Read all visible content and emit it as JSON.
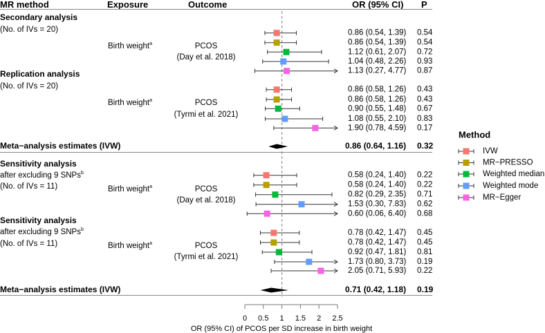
{
  "header": {
    "mr_method": "MR method",
    "exposure": "Exposure",
    "outcome": "Outcome",
    "or_ci": "OR (95% CI)",
    "p": "P"
  },
  "chart_data": {
    "type": "forest",
    "xlabel": "OR (95% CI) of PCOS per SD increase in birth weight",
    "xlim": [
      0,
      2.5
    ],
    "ticks": [
      0,
      0.5,
      1,
      1.5,
      2,
      2.5
    ],
    "tick_labels": [
      "0",
      "0.5",
      "1",
      "1.5",
      "2",
      "2.5"
    ],
    "reference_line": 1,
    "sections": [
      {
        "title": "Secondary analysis",
        "subtitle_lines": [
          {
            "text": "(No. of IVs = 20)",
            "sup": ""
          }
        ],
        "exposure": "Birth weight",
        "exposure_sup": "a",
        "outcome": "PCOS",
        "outcome_ref": "(Day et al. 2018)",
        "rows": [
          {
            "method": "IVW",
            "or": 0.86,
            "lo": 0.54,
            "hi": 1.39,
            "or_text": "0.86 (0.54, 1.39)",
            "p": "0.54"
          },
          {
            "method": "MR-PRESSO",
            "or": 0.86,
            "lo": 0.54,
            "hi": 1.39,
            "or_text": "0.86 (0.54, 1.39)",
            "p": "0.54"
          },
          {
            "method": "Weighted median",
            "or": 1.12,
            "lo": 0.61,
            "hi": 2.07,
            "or_text": "1.12 (0.61, 2.07)",
            "p": "0.72"
          },
          {
            "method": "Weighted mode",
            "or": 1.04,
            "lo": 0.48,
            "hi": 2.26,
            "or_text": "1.04 (0.48, 2.26)",
            "p": "0.93"
          },
          {
            "method": "MR-Egger",
            "or": 1.13,
            "lo": 0.27,
            "hi": 4.77,
            "or_text": "1.13 (0.27, 4.77)",
            "p": "0.87"
          }
        ]
      },
      {
        "title": "Replication analysis",
        "subtitle_lines": [
          {
            "text": "(No. of IVs = 20)",
            "sup": ""
          }
        ],
        "exposure": "Birth weight",
        "exposure_sup": "a",
        "outcome": "PCOS",
        "outcome_ref": "(Tyrmi et al. 2021)",
        "rows": [
          {
            "method": "IVW",
            "or": 0.86,
            "lo": 0.58,
            "hi": 1.26,
            "or_text": "0.86 (0.58, 1.26)",
            "p": "0.43"
          },
          {
            "method": "MR-PRESSO",
            "or": 0.86,
            "lo": 0.58,
            "hi": 1.26,
            "or_text": "0.86 (0.58, 1.26)",
            "p": "0.43"
          },
          {
            "method": "Weighted median",
            "or": 0.9,
            "lo": 0.55,
            "hi": 1.48,
            "or_text": "0.90 (0.55, 1.48)",
            "p": "0.67"
          },
          {
            "method": "Weighted mode",
            "or": 1.08,
            "lo": 0.55,
            "hi": 2.1,
            "or_text": "1.08 (0.55, 2.10)",
            "p": "0.83"
          },
          {
            "method": "MR-Egger",
            "or": 1.9,
            "lo": 0.78,
            "hi": 4.59,
            "or_text": "1.90 (0.78, 4.59)",
            "p": "0.17"
          }
        ]
      },
      {
        "title": "Sensitivity analysis",
        "subtitle_lines": [
          {
            "text": "after excluding 9 SNPs",
            "sup": "b"
          },
          {
            "text": "(No. of IVs = 11)",
            "sup": ""
          }
        ],
        "exposure": "Birth weight",
        "exposure_sup": "a",
        "outcome": "PCOS",
        "outcome_ref": "(Day et al. 2018)",
        "rows": [
          {
            "method": "IVW",
            "or": 0.58,
            "lo": 0.24,
            "hi": 1.4,
            "or_text": "0.58 (0.24, 1.40)",
            "p": "0.22"
          },
          {
            "method": "MR-PRESSO",
            "or": 0.58,
            "lo": 0.24,
            "hi": 1.4,
            "or_text": "0.58 (0.24, 1.40)",
            "p": "0.22"
          },
          {
            "method": "Weighted median",
            "or": 0.82,
            "lo": 0.29,
            "hi": 2.35,
            "or_text": "0.82 (0.29, 2.35)",
            "p": "0.71"
          },
          {
            "method": "Weighted mode",
            "or": 1.53,
            "lo": 0.3,
            "hi": 7.83,
            "or_text": "1.53 (0.30, 7.83)",
            "p": "0.62"
          },
          {
            "method": "MR-Egger",
            "or": 0.6,
            "lo": 0.06,
            "hi": 6.4,
            "or_text": "0.60 (0.06, 6.40)",
            "p": "0.68"
          }
        ]
      },
      {
        "title": "Sensitivity analysis",
        "subtitle_lines": [
          {
            "text": "after excluding 9 SNPs",
            "sup": "b"
          },
          {
            "text": "(No. of IVs = 11)",
            "sup": ""
          }
        ],
        "exposure": "Birth weight",
        "exposure_sup": "a",
        "outcome": "PCOS",
        "outcome_ref": "(Tyrmi et al. 2021)",
        "rows": [
          {
            "method": "IVW",
            "or": 0.78,
            "lo": 0.42,
            "hi": 1.47,
            "or_text": "0.78 (0.42, 1.47)",
            "p": "0.45"
          },
          {
            "method": "MR-PRESSO",
            "or": 0.78,
            "lo": 0.42,
            "hi": 1.47,
            "or_text": "0.78 (0.42, 1.47)",
            "p": "0.45"
          },
          {
            "method": "Weighted median",
            "or": 0.92,
            "lo": 0.47,
            "hi": 1.81,
            "or_text": "0.92 (0.47, 1.81)",
            "p": "0.81"
          },
          {
            "method": "Weighted mode",
            "or": 1.73,
            "lo": 0.8,
            "hi": 3.73,
            "or_text": "1.73 (0.80, 3.73)",
            "p": "0.19"
          },
          {
            "method": "MR-Egger",
            "or": 2.05,
            "lo": 0.71,
            "hi": 5.93,
            "or_text": "2.05 (0.71, 5.93)",
            "p": "0.22"
          }
        ]
      }
    ],
    "meta": [
      {
        "label": "Meta−analysis estimates (IVW)",
        "or": 0.86,
        "lo": 0.64,
        "hi": 1.16,
        "or_text": "0.86 (0.64, 1.16)",
        "p": "0.32"
      },
      {
        "label": "Meta−analysis estimates (IVW)",
        "or": 0.71,
        "lo": 0.42,
        "hi": 1.18,
        "or_text": "0.71 (0.42, 1.18)",
        "p": "0.19"
      }
    ],
    "legend": {
      "title": "Method",
      "placement": "right",
      "items": [
        {
          "label": "IVW",
          "color": "#F8766D"
        },
        {
          "label": "MR−PRESSO",
          "color": "#B79F00"
        },
        {
          "label": "Weighted median",
          "color": "#00BA38"
        },
        {
          "label": "Weighted mode",
          "color": "#619CFF"
        },
        {
          "label": "MR−Egger",
          "color": "#F564E3"
        }
      ]
    }
  }
}
